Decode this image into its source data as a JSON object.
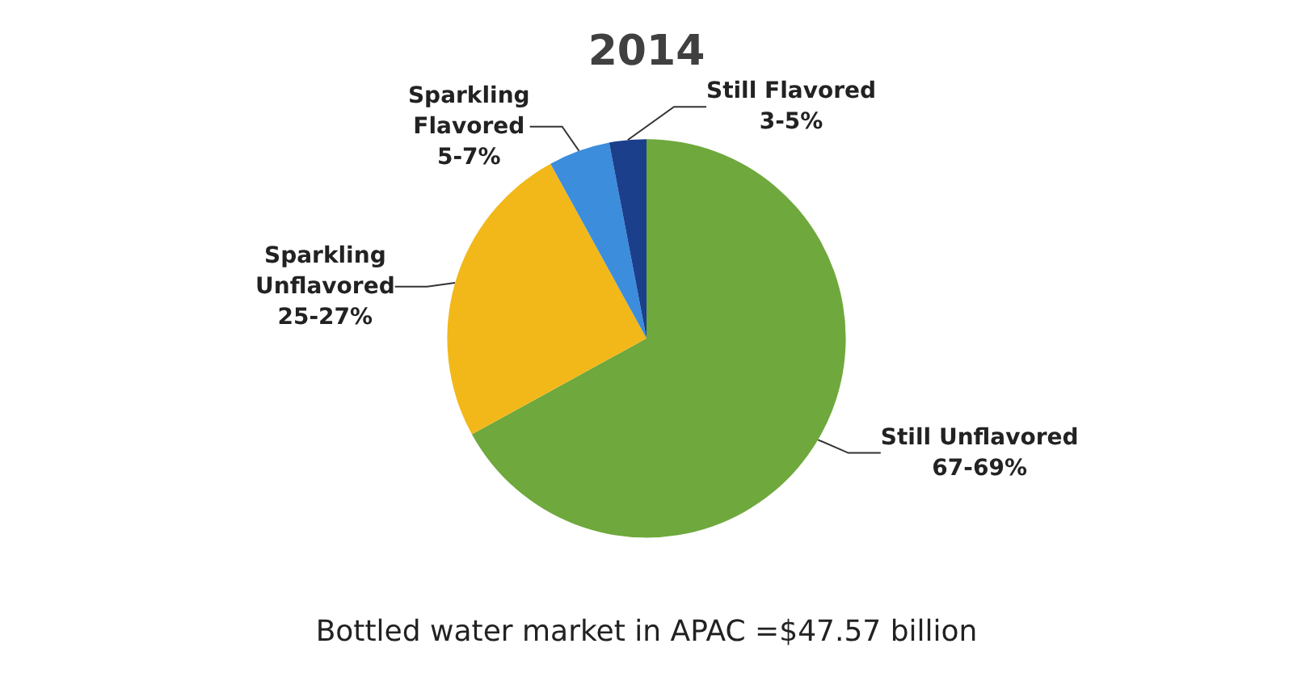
{
  "chart_data": {
    "type": "pie",
    "title": "2014",
    "categories": [
      "Still Unflavored",
      "Sparkling Unflavored",
      "Sparkling Flavored",
      "Still Flavored"
    ],
    "values": [
      67,
      25,
      5,
      3
    ],
    "value_labels": [
      "67-69%",
      "25-27%",
      "5-7%",
      "3-5%"
    ],
    "colors": [
      "#6fa83c",
      "#f2b81a",
      "#3c8ddc",
      "#1c3f8c"
    ],
    "annotations": [
      "Bottled water market in APAC =$47.57 billion"
    ],
    "legend": false
  }
}
